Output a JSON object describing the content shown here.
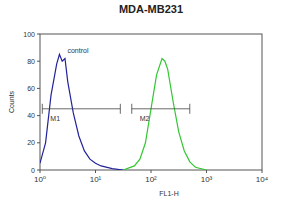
{
  "chart_data": {
    "type": "line",
    "title": "MDA-MB231",
    "x_label": "FL1-H",
    "y_label": "Counts",
    "log": "x",
    "xlim": [
      1,
      10000
    ],
    "xticks": [
      {
        "value": 1,
        "label": "10⁰"
      },
      {
        "value": 10,
        "label": "10¹"
      },
      {
        "value": 100,
        "label": "10²"
      },
      {
        "value": 1000,
        "label": "10³"
      },
      {
        "value": 10000,
        "label": "10⁴"
      }
    ],
    "ylim": [
      0,
      100
    ],
    "yticks": [
      0,
      20,
      40,
      60,
      80,
      100
    ],
    "series": [
      {
        "name": "control",
        "color": "#22229a",
        "x": [
          1,
          1.26,
          1.58,
          2,
          2.24,
          2.51,
          2.82,
          3.16,
          3.98,
          5.01,
          6.31,
          7.94,
          10,
          12.6,
          20,
          31.6
        ],
        "values": [
          5,
          20,
          55,
          78,
          85,
          80,
          82,
          65,
          42,
          25,
          14,
          8,
          5,
          3,
          1,
          0
        ]
      },
      {
        "color": "#33c633",
        "x": [
          31.6,
          50.1,
          63.1,
          79.4,
          100,
          126,
          158,
          178,
          200,
          251,
          316,
          398,
          501,
          631,
          1000
        ],
        "values": [
          0,
          3,
          8,
          20,
          45,
          70,
          82,
          80,
          74,
          50,
          28,
          14,
          6,
          2,
          0
        ]
      }
    ],
    "gates": [
      {
        "label": "M1",
        "range": [
          1.1,
          28
        ],
        "level": 45
      },
      {
        "label": "M2",
        "range": [
          45,
          500
        ],
        "level": 45
      }
    ]
  }
}
